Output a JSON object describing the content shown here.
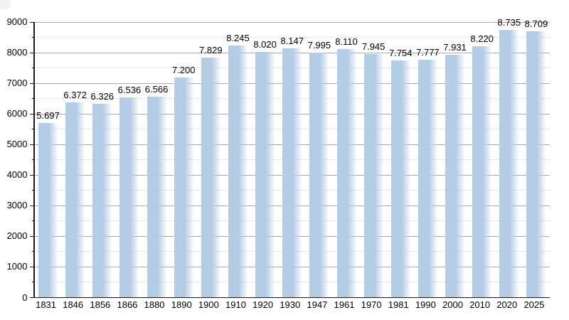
{
  "chart": {
    "background_color": "#ffffff",
    "bar_color": "#b4cce6",
    "grid_major_color": "#a8a8a8",
    "grid_minor_color": "#e5e5e5",
    "axis_color": "#1b1b1b",
    "label_color": "#000000"
  },
  "chart_data": {
    "type": "bar",
    "title": "",
    "xlabel": "",
    "ylabel": "",
    "categories": [
      "1831",
      "1846",
      "1856",
      "1866",
      "1880",
      "1890",
      "1900",
      "1910",
      "1920",
      "1930",
      "1947",
      "1961",
      "1970",
      "1981",
      "1990",
      "2000",
      "2010",
      "2020",
      "2025"
    ],
    "values": [
      5697,
      6372,
      6326,
      6536,
      6566,
      7200,
      7829,
      8245,
      8020,
      8147,
      7995,
      8110,
      7945,
      7754,
      7777,
      7931,
      8220,
      8735,
      8709
    ],
    "value_labels": [
      "5.697",
      "6.372",
      "6.326",
      "6.536",
      "6.566",
      "7.200",
      "7.829",
      "8.245",
      "8.020",
      "8.147",
      "7.995",
      "8.110",
      "7.945",
      "7.754",
      "7.777",
      "7.931",
      "8.220",
      "8.735",
      "8.709"
    ],
    "ylim": [
      0,
      9000
    ],
    "y_tick_labels": [
      "0",
      "1000",
      "2000",
      "3000",
      "4000",
      "5000",
      "6000",
      "7000",
      "8000",
      "9000"
    ],
    "y_major_step": 1000,
    "y_minor_step": 500,
    "grid": "on",
    "legend": "none"
  }
}
